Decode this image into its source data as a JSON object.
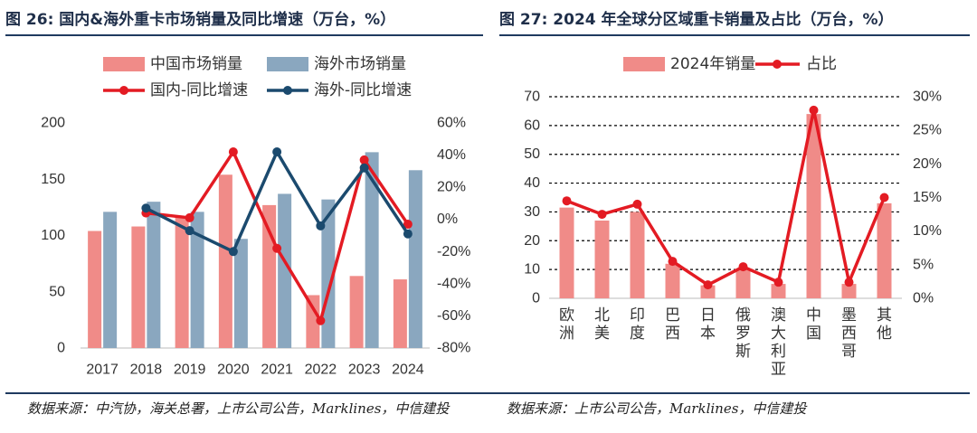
{
  "left_header": {
    "fig": "图 26:",
    "title": "国内&海外重卡市场销量及同比增速（万台，%）"
  },
  "right_header": {
    "fig": "图 27:",
    "title": "2024 年全球分区域重卡销量及占比（万台，%）"
  },
  "left_source": "数据来源：中汽协，海关总署，上市公司公告，Marklines，中信建投",
  "right_source": "数据来源：上市公司公告，Marklines，中信建投",
  "colors": {
    "domestic": "#f08b88",
    "overseas": "#8aa7bf",
    "red_line": "#e31b23",
    "navy_line": "#1b4a6e",
    "header": "#1f2f4a",
    "rule": "#1f3a5f"
  },
  "chart_data": [
    {
      "type": "bar",
      "categories": [
        "2017",
        "2018",
        "2019",
        "2020",
        "2021",
        "2022",
        "2023",
        "2024"
      ],
      "series": [
        {
          "name": "中国市场销量",
          "kind": "bar",
          "axis": "left",
          "values": [
            104,
            108,
            117,
            154,
            127,
            47,
            64,
            61
          ]
        },
        {
          "name": "海外市场销量",
          "kind": "bar",
          "axis": "left",
          "values": [
            121,
            130,
            121,
            97,
            137,
            132,
            174,
            158
          ]
        },
        {
          "name": "国内-同比增速",
          "kind": "line",
          "axis": "right",
          "values": [
            null,
            4,
            1,
            42,
            -18,
            -63,
            37,
            -3
          ]
        },
        {
          "name": "海外-同比增速",
          "kind": "line",
          "axis": "right",
          "values": [
            null,
            7,
            -7,
            -20,
            42,
            -4,
            32,
            -9
          ]
        }
      ],
      "ylim": [
        0,
        200
      ],
      "yticks": [
        "0",
        "50",
        "100",
        "150",
        "200"
      ],
      "y2lim": [
        -80,
        60
      ],
      "y2ticks": [
        "-80%",
        "-60%",
        "-40%",
        "-20%",
        "0%",
        "20%",
        "40%",
        "60%"
      ],
      "grid": false,
      "legend": "top"
    },
    {
      "type": "bar",
      "categories": [
        "欧洲",
        "北美",
        "印度",
        "巴西",
        "日本",
        "俄罗斯",
        "澳大利亚",
        "中国",
        "墨西哥",
        "其他"
      ],
      "series": [
        {
          "name": "2024年销量",
          "kind": "bar",
          "axis": "left",
          "values": [
            31.5,
            27,
            30,
            12,
            4.5,
            10,
            5,
            64,
            5,
            33
          ]
        },
        {
          "name": "占比",
          "kind": "line",
          "axis": "right",
          "values": [
            14.5,
            12.5,
            14,
            5.5,
            2,
            4.7,
            2.4,
            28,
            2.4,
            15
          ]
        }
      ],
      "ylim": [
        0,
        70
      ],
      "yticks": [
        "0",
        "10",
        "20",
        "30",
        "40",
        "50",
        "60",
        "70"
      ],
      "y2lim": [
        0,
        30
      ],
      "y2ticks": [
        "0%",
        "5%",
        "10%",
        "15%",
        "20%",
        "25%",
        "30%"
      ],
      "grid": "dashed-horizontal",
      "legend": "top"
    }
  ]
}
